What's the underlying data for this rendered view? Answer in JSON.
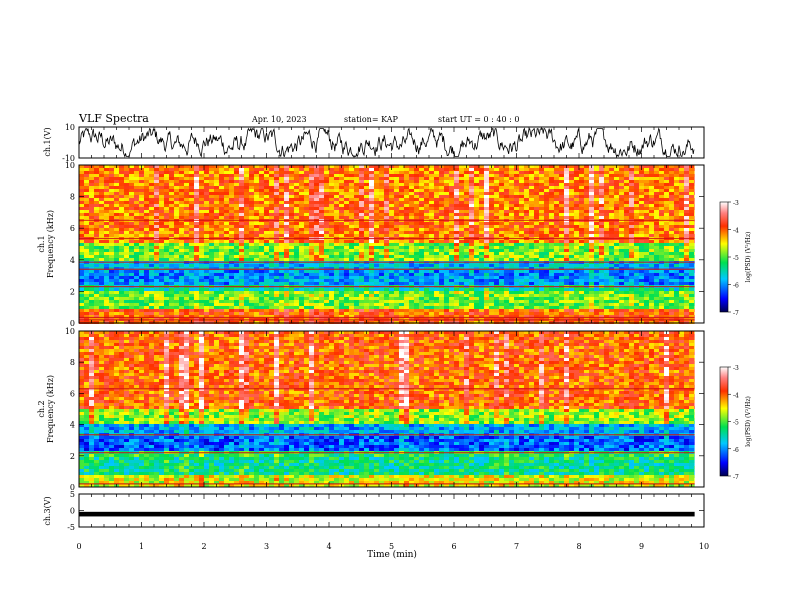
{
  "header": {
    "title": "VLF Spectra",
    "date": "Apr. 10, 2023",
    "station": "station= KAP",
    "start_ut": "start UT =  0 : 40 : 0"
  },
  "chart_data": [
    {
      "id": "ch1-waveform",
      "type": "line",
      "ylabel": "ch.1(V)",
      "ylim": [
        -10,
        10
      ],
      "yticks": [
        "10",
        "-10"
      ],
      "xlim": [
        0,
        10
      ],
      "description_values": "noisy voltage trace over 0–9.85 min, amplitude mostly within about -8 to 8 V"
    },
    {
      "id": "ch1-spectrogram",
      "type": "heatmap",
      "ylabel": "ch.1\nFrequency (kHz)",
      "ylim": [
        0,
        10
      ],
      "yticks": [
        "0",
        "2",
        "4",
        "6",
        "8",
        "10"
      ],
      "xlim": [
        0,
        10
      ],
      "data_x_end_min": 9.85,
      "colorbar": {
        "label": "log(PSD) (V²/Hz)",
        "range": [
          -7,
          -3
        ],
        "ticks": [
          "-3",
          "-4",
          "-5",
          "-6",
          "-7"
        ]
      },
      "bands_log_psd": [
        {
          "f": [
            0.0,
            0.8
          ],
          "v": -4.0
        },
        {
          "f": [
            0.8,
            2.0
          ],
          "v": -4.9
        },
        {
          "f": [
            2.0,
            2.4
          ],
          "v": -5.5
        },
        {
          "f": [
            2.4,
            3.3
          ],
          "v": -6.0
        },
        {
          "f": [
            3.3,
            4.0
          ],
          "v": -5.8
        },
        {
          "f": [
            4.0,
            5.0
          ],
          "v": -4.9
        },
        {
          "f": [
            5.0,
            10.0
          ],
          "v": -4.1
        }
      ],
      "lines_khz": [
        0.2,
        0.35,
        2.3,
        3.4,
        3.85,
        5.35,
        6.5
      ]
    },
    {
      "id": "ch2-spectrogram",
      "type": "heatmap",
      "ylabel": "ch.2\nFrequency (kHz)",
      "ylim": [
        0,
        10
      ],
      "yticks": [
        "0",
        "2",
        "4",
        "6",
        "8",
        "10"
      ],
      "xlim": [
        0,
        10
      ],
      "data_x_end_min": 9.85,
      "colorbar": {
        "label": "log(PSD) (V²/Hz)",
        "range": [
          -7,
          -3
        ],
        "ticks": [
          "-3",
          "-4",
          "-5",
          "-6",
          "-7"
        ]
      },
      "bands_log_psd": [
        {
          "f": [
            0.0,
            0.8
          ],
          "v": -4.6
        },
        {
          "f": [
            0.8,
            2.0
          ],
          "v": -5.4
        },
        {
          "f": [
            2.0,
            2.3
          ],
          "v": -5.2
        },
        {
          "f": [
            2.3,
            3.3
          ],
          "v": -6.2
        },
        {
          "f": [
            3.3,
            4.0
          ],
          "v": -5.9
        },
        {
          "f": [
            4.0,
            5.0
          ],
          "v": -4.8
        },
        {
          "f": [
            5.0,
            10.0
          ],
          "v": -4.0
        }
      ],
      "lines_khz": [
        0.2,
        2.2,
        3.35,
        6.3
      ]
    },
    {
      "id": "ch3-waveform",
      "type": "line",
      "ylabel": "ch.3(V)",
      "ylim": [
        -5,
        5
      ],
      "yticks": [
        "5",
        "0",
        "-5"
      ],
      "xlim": [
        0,
        10
      ],
      "values_approx": "nearly constant near -1 V over 0–9.85 min",
      "xlabel": "Time (min)",
      "xticks": [
        "0",
        "1",
        "2",
        "3",
        "4",
        "5",
        "6",
        "7",
        "8",
        "9",
        "10"
      ]
    }
  ]
}
